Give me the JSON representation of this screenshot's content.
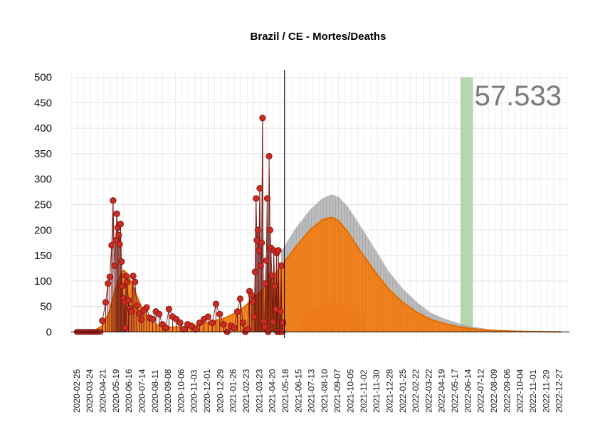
{
  "chart_data": {
    "type": "line",
    "title": "Brazil / CE - Mortes/Deaths",
    "total_label": "57.533",
    "ylim": [
      -12,
      512
    ],
    "yticks": [
      0,
      50,
      100,
      150,
      200,
      250,
      300,
      350,
      400,
      450,
      500
    ],
    "xlim": [
      "2020-02-13",
      "2023-01-18"
    ],
    "xticks": [
      "2020-02-25",
      "2020-03-24",
      "2020-04-21",
      "2020-05-19",
      "2020-06-16",
      "2020-07-14",
      "2020-08-11",
      "2020-09-08",
      "2020-10-06",
      "2020-11-03",
      "2020-12-01",
      "2020-12-29",
      "2021-01-26",
      "2021-02-23",
      "2021-03-23",
      "2021-04-20",
      "2021-05-18",
      "2021-06-15",
      "2021-07-13",
      "2021-08-10",
      "2021-09-07",
      "2021-10-05",
      "2021-11-02",
      "2021-11-30",
      "2021-12-28",
      "2022-01-25",
      "2022-02-22",
      "2022-03-22",
      "2022-04-19",
      "2022-05-17",
      "2022-06-14",
      "2022-07-12",
      "2022-08-09",
      "2022-09-06",
      "2022-10-04",
      "2022-11-01",
      "2022-11-29",
      "2022-12-27"
    ],
    "grid": true,
    "today": "2021-05-16",
    "highlight_band": {
      "start": "2022-05-29",
      "end": "2022-06-25",
      "color": "#a8d0a0"
    },
    "shaded_region": {
      "start": "2021-06-20",
      "end": "2021-11-02",
      "peak_value": 57,
      "peak_date": "2021-09-01",
      "color": "#d9667a"
    },
    "series": [
      {
        "kind": "observed_daily",
        "color": "#cc2a22",
        "x": [
          "2020-04-20",
          "2020-04-27",
          "2020-05-02",
          "2020-05-06",
          "2020-05-10",
          "2020-05-13",
          "2020-05-16",
          "2020-05-19",
          "2020-05-21",
          "2020-05-23",
          "2020-05-25",
          "2020-05-27",
          "2020-05-29",
          "2020-05-31",
          "2020-06-02",
          "2020-06-04",
          "2020-06-06",
          "2020-06-08",
          "2020-06-10",
          "2020-06-12",
          "2020-06-15",
          "2020-06-18",
          "2020-06-21",
          "2020-06-25",
          "2020-06-29",
          "2020-07-03",
          "2020-07-08",
          "2020-07-13",
          "2020-07-18",
          "2020-07-24",
          "2020-07-30",
          "2020-08-06",
          "2020-08-13",
          "2020-08-20",
          "2020-08-27",
          "2020-09-03",
          "2020-09-10",
          "2020-09-18",
          "2020-09-26",
          "2020-10-04",
          "2020-10-12",
          "2020-10-20",
          "2020-10-28",
          "2020-11-06",
          "2020-11-15",
          "2020-11-24",
          "2020-12-03",
          "2020-12-12",
          "2020-12-20",
          "2020-12-28",
          "2021-01-05",
          "2021-01-13",
          "2021-01-21",
          "2021-01-28",
          "2021-02-04",
          "2021-02-10",
          "2021-02-16",
          "2021-02-21",
          "2021-02-26",
          "2021-03-02",
          "2021-03-06",
          "2021-03-09",
          "2021-03-12",
          "2021-03-14",
          "2021-03-16",
          "2021-03-18",
          "2021-03-20",
          "2021-03-22",
          "2021-03-24",
          "2021-03-26",
          "2021-03-28",
          "2021-03-30",
          "2021-04-01",
          "2021-04-03",
          "2021-04-05",
          "2021-04-07",
          "2021-04-09",
          "2021-04-11",
          "2021-04-13",
          "2021-04-15",
          "2021-04-17",
          "2021-04-19",
          "2021-04-21",
          "2021-04-23",
          "2021-04-25",
          "2021-04-27",
          "2021-04-29",
          "2021-05-01",
          "2021-05-03",
          "2021-05-05",
          "2021-05-07",
          "2021-05-09",
          "2021-05-11",
          "2021-05-13"
        ],
        "values": [
          22,
          58,
          95,
          108,
          170,
          258,
          130,
          180,
          232,
          205,
          190,
          172,
          212,
          138,
          90,
          66,
          58,
          8,
          110,
          98,
          62,
          46,
          40,
          110,
          98,
          52,
          36,
          24,
          43,
          48,
          28,
          25,
          40,
          35,
          15,
          8,
          45,
          30,
          25,
          18,
          5,
          15,
          12,
          5,
          18,
          25,
          30,
          18,
          55,
          35,
          15,
          0,
          12,
          8,
          40,
          65,
          18,
          0,
          5,
          80,
          72,
          60,
          30,
          118,
          262,
          180,
          200,
          160,
          282,
          130,
          175,
          420,
          20,
          10,
          95,
          140,
          262,
          0,
          345,
          200,
          165,
          110,
          20,
          160,
          90,
          45,
          155,
          0,
          160,
          0,
          40,
          130,
          0,
          18
        ]
      },
      {
        "kind": "model_mean",
        "color": "#f07a10",
        "x": [
          "2020-03-10",
          "2020-04-01",
          "2020-04-20",
          "2020-05-05",
          "2020-05-15",
          "2020-05-25",
          "2020-06-05",
          "2020-06-15",
          "2020-06-25",
          "2020-07-10",
          "2020-07-25",
          "2020-08-15",
          "2020-09-10",
          "2020-10-10",
          "2020-11-10",
          "2020-12-10",
          "2021-01-10",
          "2021-02-10",
          "2021-03-10",
          "2021-04-10",
          "2021-05-10",
          "2021-06-10",
          "2021-07-10",
          "2021-08-05",
          "2021-08-25",
          "2021-09-10",
          "2021-09-30",
          "2021-10-25",
          "2021-11-25",
          "2021-12-25",
          "2022-01-25",
          "2022-02-25",
          "2022-03-25",
          "2022-04-25",
          "2022-05-25",
          "2022-06-25",
          "2022-08-01",
          "2022-09-15",
          "2022-11-01",
          "2022-12-31"
        ],
        "values": [
          0,
          2,
          12,
          40,
          75,
          105,
          122,
          110,
          88,
          55,
          30,
          14,
          9,
          10,
          14,
          20,
          28,
          42,
          65,
          95,
          130,
          168,
          200,
          220,
          225,
          218,
          195,
          160,
          120,
          85,
          58,
          38,
          25,
          16,
          10,
          6,
          3,
          1.5,
          0.6,
          0.1
        ]
      },
      {
        "kind": "model_upper",
        "color": "#a9a9a9",
        "x": [
          "2021-05-10",
          "2021-06-10",
          "2021-07-10",
          "2021-08-05",
          "2021-08-25",
          "2021-09-10",
          "2021-09-30",
          "2021-10-25",
          "2021-11-25",
          "2021-12-25",
          "2022-01-25",
          "2022-02-25",
          "2022-03-25",
          "2022-04-25",
          "2022-05-25",
          "2022-06-25",
          "2022-08-01",
          "2022-09-15",
          "2022-11-01",
          "2022-12-31"
        ],
        "values": [
          160,
          205,
          240,
          262,
          270,
          265,
          245,
          210,
          165,
          120,
          85,
          58,
          38,
          26,
          17,
          10,
          5,
          2.5,
          1,
          0.2
        ]
      },
      {
        "kind": "model_lower",
        "color": "#f07a10",
        "x": [
          "2021-05-10",
          "2021-06-10",
          "2021-07-10",
          "2021-08-05",
          "2021-08-25",
          "2021-09-10",
          "2021-09-30",
          "2021-10-25",
          "2021-11-25",
          "2021-12-25",
          "2022-01-25",
          "2022-02-25",
          "2022-03-25",
          "2022-04-25",
          "2022-05-25",
          "2022-06-25",
          "2022-08-01",
          "2022-09-15",
          "2022-11-01",
          "2022-12-31"
        ],
        "values": [
          60,
          80,
          120,
          150,
          160,
          155,
          135,
          105,
          75,
          50,
          30,
          18,
          11,
          7,
          4,
          2,
          1,
          0.5,
          0.2,
          0
        ]
      }
    ]
  }
}
